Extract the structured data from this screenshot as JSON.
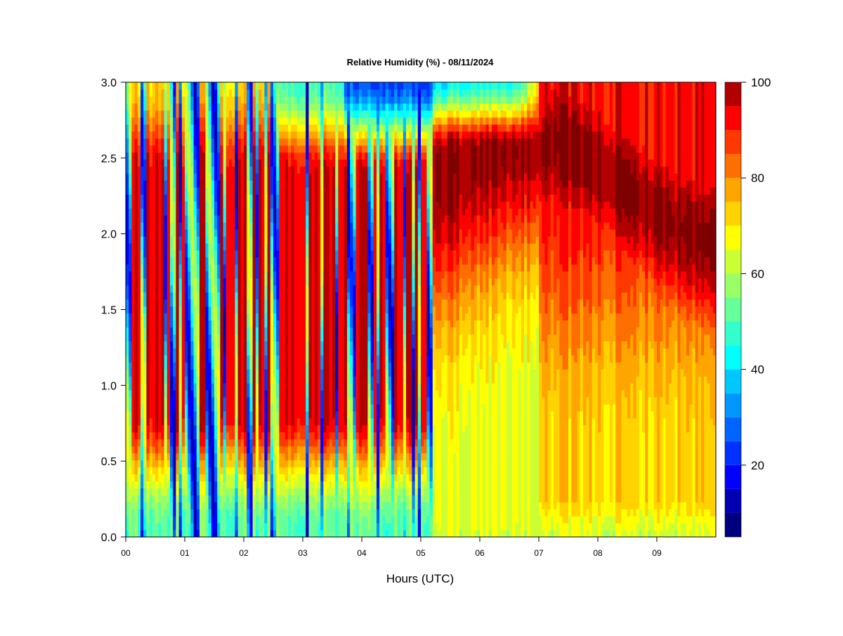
{
  "chart_data": {
    "type": "heatmap",
    "title": "Relative Humidity (%) - 08/11/2024",
    "xlabel": "Hours (UTC)",
    "ylabel": "",
    "x_range": [
      0,
      10
    ],
    "y_range": [
      0,
      3
    ],
    "x_ticks": [
      {
        "value": 0,
        "label": "00"
      },
      {
        "value": 1,
        "label": "01"
      },
      {
        "value": 2,
        "label": "02"
      },
      {
        "value": 3,
        "label": "03"
      },
      {
        "value": 4,
        "label": "04"
      },
      {
        "value": 5,
        "label": "05"
      },
      {
        "value": 6,
        "label": "06"
      },
      {
        "value": 7,
        "label": "07"
      },
      {
        "value": 8,
        "label": "08"
      },
      {
        "value": 9,
        "label": "09"
      }
    ],
    "y_ticks": [
      {
        "value": 0.0,
        "label": "0.0"
      },
      {
        "value": 0.5,
        "label": "0.5"
      },
      {
        "value": 1.0,
        "label": "1.0"
      },
      {
        "value": 1.5,
        "label": "1.5"
      },
      {
        "value": 2.0,
        "label": "2.0"
      },
      {
        "value": 2.5,
        "label": "2.5"
      },
      {
        "value": 3.0,
        "label": "3.0"
      }
    ],
    "colorbar": {
      "range": [
        5,
        100
      ],
      "levels": [
        5,
        10,
        15,
        20,
        25,
        30,
        35,
        40,
        45,
        50,
        55,
        60,
        65,
        70,
        75,
        80,
        85,
        90,
        95,
        100
      ],
      "colors": [
        "#00007f",
        "#0000b2",
        "#0000ff",
        "#0032ff",
        "#0064ff",
        "#0096ff",
        "#00c8ff",
        "#00ffff",
        "#33ffcc",
        "#66ff99",
        "#99ff66",
        "#ccff33",
        "#ffff00",
        "#ffd200",
        "#ffa500",
        "#ff6e00",
        "#ff3700",
        "#ff0000",
        "#b20000"
      ],
      "ticks": [
        {
          "value": 20,
          "label": "20"
        },
        {
          "value": 40,
          "label": "40"
        },
        {
          "value": 60,
          "label": "60"
        },
        {
          "value": 80,
          "label": "80"
        },
        {
          "value": 100,
          "label": "100"
        }
      ]
    }
  }
}
